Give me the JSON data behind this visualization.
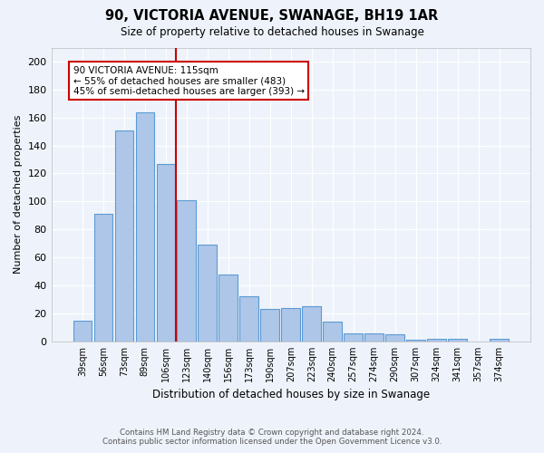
{
  "title": "90, VICTORIA AVENUE, SWANAGE, BH19 1AR",
  "subtitle": "Size of property relative to detached houses in Swanage",
  "xlabel": "Distribution of detached houses by size in Swanage",
  "ylabel": "Number of detached properties",
  "categories": [
    "39sqm",
    "56sqm",
    "73sqm",
    "89sqm",
    "106sqm",
    "123sqm",
    "140sqm",
    "156sqm",
    "173sqm",
    "190sqm",
    "207sqm",
    "223sqm",
    "240sqm",
    "257sqm",
    "274sqm",
    "290sqm",
    "307sqm",
    "324sqm",
    "341sqm",
    "357sqm",
    "374sqm"
  ],
  "values": [
    15,
    91,
    151,
    164,
    127,
    101,
    69,
    48,
    32,
    23,
    24,
    25,
    14,
    6,
    6,
    5,
    1,
    2,
    2,
    0,
    2
  ],
  "bar_color": "#aec6e8",
  "bar_edge_color": "#5b9bd5",
  "background_color": "#eef3fb",
  "grid_color": "#ffffff",
  "vline_x": 4.5,
  "vline_color": "#cc0000",
  "annotation_title": "90 VICTORIA AVENUE: 115sqm",
  "annotation_line1": "← 55% of detached houses are smaller (483)",
  "annotation_line2": "45% of semi-detached houses are larger (393) →",
  "annotation_box_color": "#cc0000",
  "ylim": [
    0,
    210
  ],
  "yticks": [
    0,
    20,
    40,
    60,
    80,
    100,
    120,
    140,
    160,
    180,
    200
  ],
  "footer1": "Contains HM Land Registry data © Crown copyright and database right 2024.",
  "footer2": "Contains public sector information licensed under the Open Government Licence v3.0."
}
